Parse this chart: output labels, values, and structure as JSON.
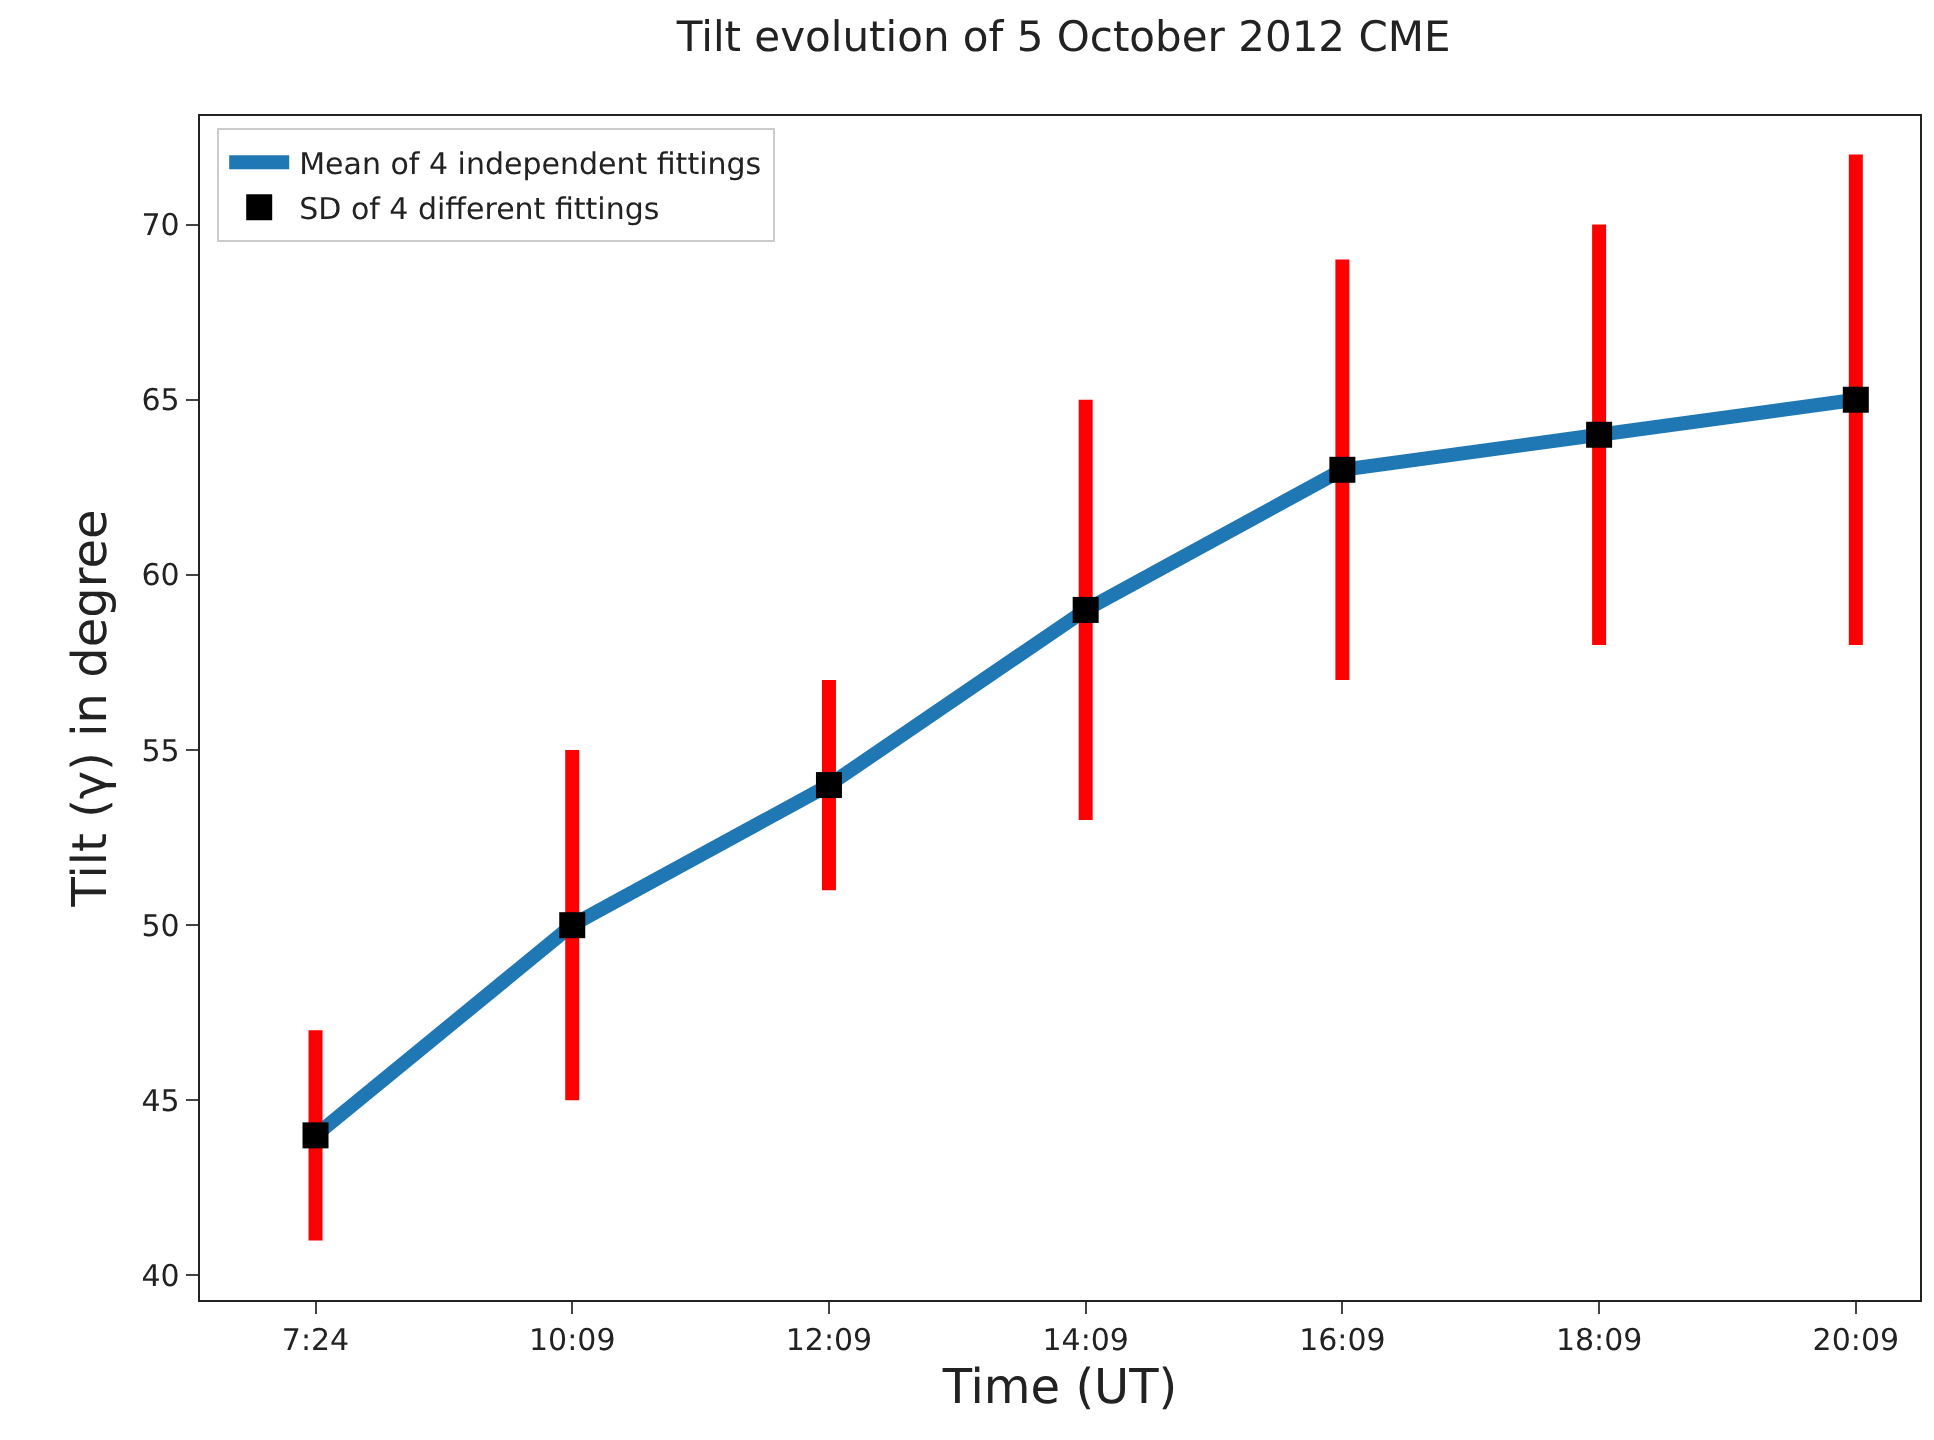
{
  "chart_data": {
    "type": "line",
    "title": "Tilt evolution of 5 October 2012 CME",
    "xlabel": "Time (UT)",
    "ylabel": "Tilt (γ) in degree",
    "categories": [
      "7:24",
      "10:09",
      "12:09",
      "14:09",
      "16:09",
      "18:09",
      "20:09"
    ],
    "series": [
      {
        "name": "Mean of 4 independent fittings",
        "color": "#1f77b4",
        "values": [
          44,
          50,
          54,
          59,
          63,
          64,
          65
        ],
        "marker": "none"
      },
      {
        "name": "SD of 4 different fittings",
        "type": "scatter",
        "color": "#000000",
        "marker": "square",
        "values": [
          44,
          50,
          54,
          59,
          63,
          64,
          65
        ],
        "errors": [
          3,
          5,
          3,
          6,
          6,
          6,
          7
        ]
      }
    ],
    "ylim": [
      39.3,
      73.1
    ],
    "yticks": [
      40,
      45,
      50,
      55,
      60,
      65,
      70
    ],
    "legend": "top left",
    "line_style": "solid"
  }
}
